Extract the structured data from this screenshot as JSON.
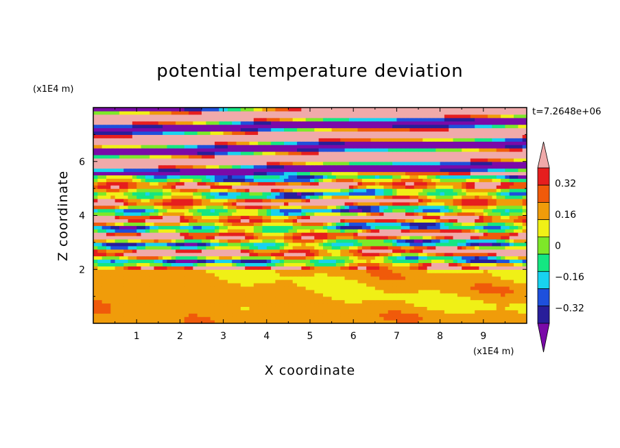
{
  "chart_data": {
    "type": "heatmap",
    "title": "potential temperature deviation",
    "xlabel": "X coordinate",
    "ylabel": "Z coordinate",
    "x_unit": "(x1E4 m)",
    "y_unit": "(x1E4 m)",
    "time_label": "t=7.2648e+06",
    "xlim": [
      0,
      10
    ],
    "ylim": [
      0,
      8
    ],
    "x_ticks": [
      "1",
      "2",
      "3",
      "4",
      "5",
      "6",
      "7",
      "8",
      "9"
    ],
    "y_ticks": [
      "2",
      "4",
      "6"
    ],
    "colorbar": {
      "levels": [
        -0.48,
        -0.4,
        -0.32,
        -0.24,
        -0.16,
        -0.08,
        0,
        0.08,
        0.16,
        0.24,
        0.32,
        0.4,
        0.48
      ],
      "labels": [
        "0.32",
        "0.16",
        "0",
        "−0.16",
        "−0.32"
      ],
      "colors": [
        "#7a0aa8",
        "#281e9a",
        "#1e50dc",
        "#18d2f0",
        "#14e682",
        "#7ee828",
        "#f0f016",
        "#f09c0a",
        "#f05a0a",
        "#e61e1e",
        "#f0aaaa"
      ],
      "extend": "both"
    },
    "field_description_zones": [
      {
        "z_range": [
          0,
          2
        ],
        "pattern": "weak perturbations near zero"
      },
      {
        "z_range": [
          2,
          5.5
        ],
        "pattern": "strong layered oscillations"
      },
      {
        "z_range": [
          5.5,
          8
        ],
        "pattern": "alternating saturated bands"
      }
    ]
  }
}
